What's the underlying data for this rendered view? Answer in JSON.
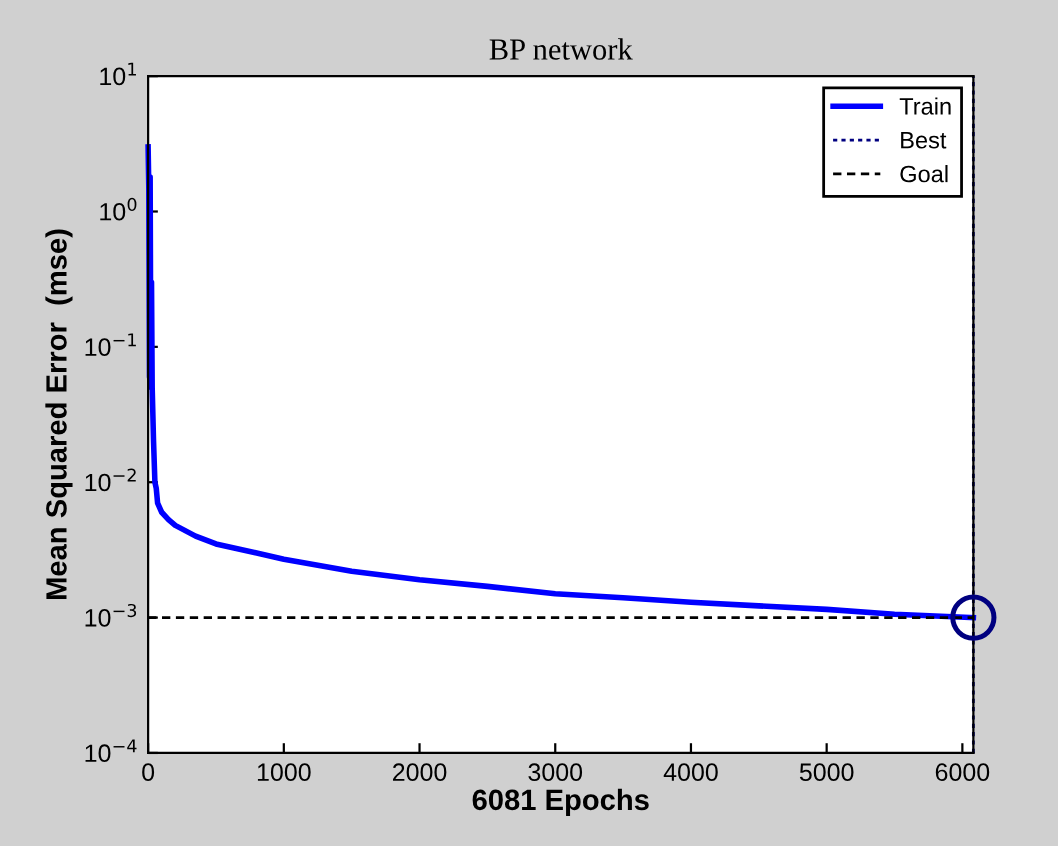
{
  "chart_data": {
    "type": "line",
    "title": "BP network",
    "xlabel": "6081 Epochs",
    "ylabel": "Mean Squared Error  (mse)",
    "log": "y",
    "xlim": [
      0,
      6081
    ],
    "ylim": [
      0.0001,
      10
    ],
    "xticks": [
      0,
      1000,
      2000,
      3000,
      4000,
      5000,
      6000
    ],
    "yticks": [
      {
        "value": 0.0001,
        "label": "10$^{−4}$"
      },
      {
        "value": 0.001,
        "label": "10$^{−3}$"
      },
      {
        "value": 0.01,
        "label": "10$^{−2}$"
      },
      {
        "value": 0.1,
        "label": "10$^{−1}$"
      },
      {
        "value": 1,
        "label": "10$^{0}$"
      },
      {
        "value": 10,
        "label": "10$^{1}$"
      }
    ],
    "grid": false,
    "legend": "top right",
    "series": [
      {
        "name": "Train",
        "color": "#0000ff",
        "line_style": "solid",
        "x": [
          0,
          5,
          10,
          15,
          20,
          25,
          30,
          40,
          50,
          60,
          70,
          100,
          150,
          200,
          350,
          500,
          800,
          1000,
          1500,
          2000,
          2500,
          3000,
          3500,
          4000,
          4500,
          5000,
          5500,
          6081
        ],
        "values": [
          3,
          1.5,
          0.06,
          1.8,
          0.05,
          0.3,
          0.05,
          0.02,
          0.01,
          0.009,
          0.007,
          0.006,
          0.0053,
          0.0048,
          0.004,
          0.0035,
          0.003,
          0.0027,
          0.0022,
          0.0019,
          0.0017,
          0.0015,
          0.0014,
          0.0013,
          0.00122,
          0.00115,
          0.00106,
          0.001
        ]
      },
      {
        "name": "Best",
        "color": "#000080",
        "line_style": "dotted",
        "x": [
          6081,
          6081
        ],
        "values": [
          0.0001,
          10
        ]
      },
      {
        "name": "Goal",
        "color": "#000000",
        "line_style": "dashed",
        "x": [
          0,
          6081
        ],
        "values": [
          0.001,
          0.001
        ]
      },
      {
        "type": "scatter",
        "color": "#000080",
        "marker": "circle",
        "x": [
          6081
        ],
        "values": [
          0.001
        ]
      }
    ]
  }
}
